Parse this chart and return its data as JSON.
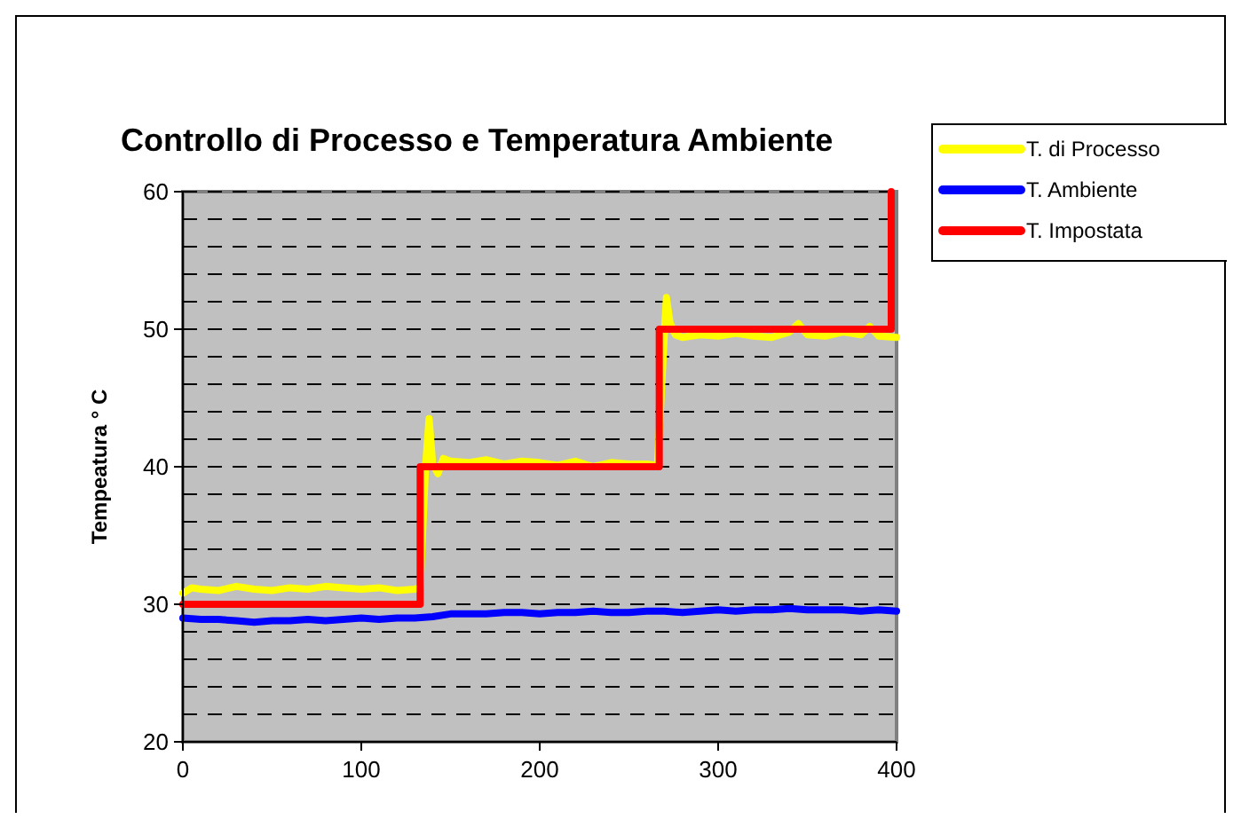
{
  "chart_data": {
    "type": "line",
    "title": "Controllo di Processo e Temperatura Ambiente",
    "ylabel": "Tempeatura ° C",
    "xlim": [
      0,
      400
    ],
    "xticks": [
      0,
      100,
      200,
      300,
      400
    ],
    "ylim": [
      20,
      60
    ],
    "yticks": [
      20,
      {
        "value": 22,
        "label": null
      },
      {
        "value": 24,
        "label": null
      },
      {
        "value": 26,
        "label": null
      },
      {
        "value": 28,
        "label": null
      },
      30,
      {
        "value": 32,
        "label": null
      },
      {
        "value": 34,
        "label": null
      },
      {
        "value": 36,
        "label": null
      },
      {
        "value": 38,
        "label": null
      },
      40,
      {
        "value": 42,
        "label": null
      },
      {
        "value": 44,
        "label": null
      },
      {
        "value": 46,
        "label": null
      },
      {
        "value": 48,
        "label": null
      },
      50,
      {
        "value": 52,
        "label": null
      },
      {
        "value": 54,
        "label": null
      },
      {
        "value": 56,
        "label": null
      },
      {
        "value": 58,
        "label": null
      },
      60
    ],
    "grid": "y",
    "legend": "top right",
    "line_style": "solid",
    "series": [
      {
        "name": "T. di Processo",
        "color": "#ffff00",
        "x": [
          0,
          5,
          10,
          20,
          30,
          40,
          50,
          60,
          70,
          80,
          90,
          100,
          110,
          120,
          130,
          133,
          136,
          138,
          140,
          143,
          146,
          150,
          160,
          170,
          180,
          190,
          200,
          210,
          220,
          230,
          240,
          250,
          260,
          266,
          268,
          270,
          271,
          273,
          276,
          280,
          290,
          300,
          310,
          320,
          330,
          340,
          345,
          350,
          360,
          370,
          380,
          385,
          390,
          400
        ],
        "values": [
          30.8,
          31.2,
          31.1,
          31.0,
          31.3,
          31.1,
          31.0,
          31.2,
          31.1,
          31.3,
          31.2,
          31.1,
          31.2,
          31.0,
          31.1,
          31.2,
          40,
          43.5,
          40.2,
          39.5,
          40.6,
          40.4,
          40.3,
          40.5,
          40.2,
          40.4,
          40.3,
          40.1,
          40.4,
          40.0,
          40.3,
          40.2,
          40.2,
          40.1,
          45,
          50,
          52.3,
          50.5,
          49.6,
          49.4,
          49.6,
          49.5,
          49.7,
          49.5,
          49.4,
          49.8,
          50.4,
          49.6,
          49.5,
          49.8,
          49.6,
          50.2,
          49.5,
          49.4
        ]
      },
      {
        "name": "T. Ambiente",
        "color": "#0000ff",
        "x": [
          0,
          10,
          20,
          30,
          40,
          50,
          60,
          70,
          80,
          90,
          100,
          110,
          120,
          130,
          140,
          150,
          160,
          170,
          180,
          190,
          200,
          210,
          220,
          230,
          240,
          250,
          260,
          270,
          280,
          290,
          300,
          310,
          320,
          330,
          340,
          350,
          360,
          370,
          380,
          390,
          400
        ],
        "values": [
          29.0,
          28.9,
          28.9,
          28.8,
          28.7,
          28.8,
          28.8,
          28.9,
          28.8,
          28.9,
          29.0,
          28.9,
          29.0,
          29.0,
          29.1,
          29.3,
          29.3,
          29.3,
          29.4,
          29.4,
          29.3,
          29.4,
          29.4,
          29.5,
          29.4,
          29.4,
          29.5,
          29.5,
          29.4,
          29.5,
          29.6,
          29.5,
          29.6,
          29.6,
          29.7,
          29.6,
          29.6,
          29.6,
          29.5,
          29.6,
          29.5
        ]
      },
      {
        "name": "T. Impostata",
        "color": "#ff0000",
        "x": [
          0,
          133,
          133,
          267,
          267,
          397,
          397
        ],
        "values": [
          30,
          30,
          40,
          40,
          50,
          50,
          60
        ]
      }
    ]
  }
}
